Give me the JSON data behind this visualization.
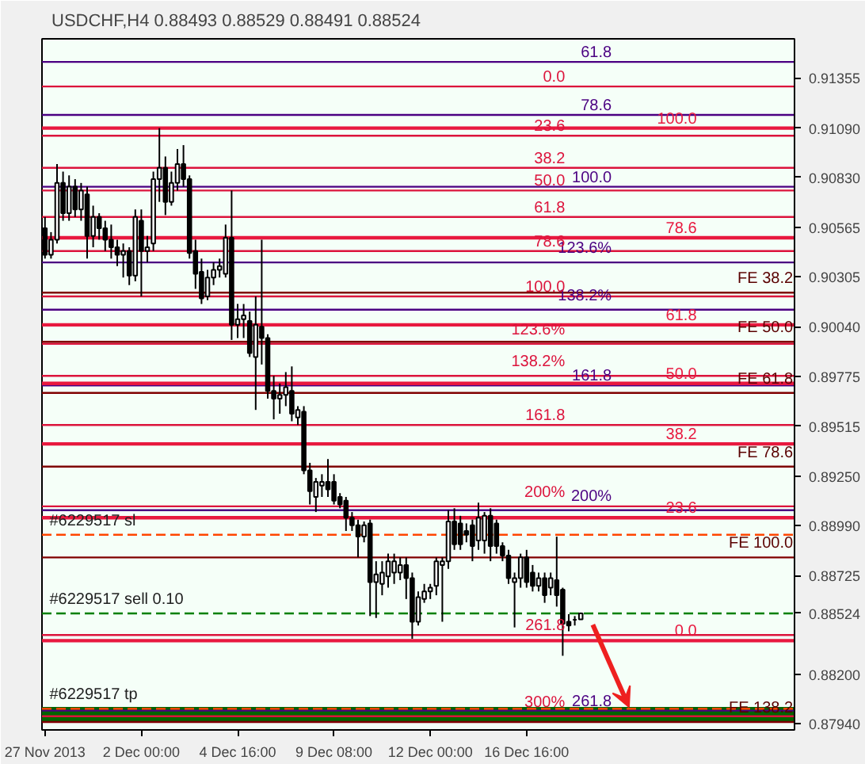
{
  "chart_data": {
    "type": "candlestick",
    "title": "USDCHF,H4  0.88493 0.88529 0.88491 0.88524",
    "categories": [
      "27 Nov 2013",
      null,
      null,
      null,
      null,
      null,
      null,
      null,
      null,
      null,
      null,
      null,
      null,
      null,
      null,
      null,
      "2 Dec 00:00",
      null,
      null,
      null,
      null,
      null,
      null,
      null,
      null,
      null,
      null,
      null,
      null,
      null,
      null,
      null,
      "4 Dec 16:00",
      null,
      null,
      null,
      null,
      null,
      null,
      null,
      null,
      null,
      null,
      null,
      null,
      null,
      null,
      null,
      "9 Dec 08:00",
      null,
      null,
      null,
      null,
      null,
      null,
      null,
      null,
      null,
      null,
      null,
      null,
      null,
      null,
      null,
      "12 Dec 00:00",
      null,
      null,
      null,
      null,
      null,
      null,
      null,
      null,
      null,
      null,
      null,
      null,
      null,
      null,
      null,
      "16 Dec 16:00",
      null,
      null,
      null,
      null,
      null,
      null,
      null,
      null,
      null,
      null,
      null,
      null,
      null,
      null,
      null,
      null,
      null,
      null,
      null,
      null,
      null,
      null,
      null,
      null,
      null,
      null,
      null,
      null,
      null,
      null,
      null,
      null,
      null,
      null,
      null,
      null,
      null,
      null,
      null,
      null,
      null,
      null,
      null,
      null
    ],
    "ohlc": [
      [
        0.9056,
        0.9062,
        0.904,
        0.9042
      ],
      [
        0.9042,
        0.9054,
        0.904,
        0.905
      ],
      [
        0.905,
        0.909,
        0.9048,
        0.908
      ],
      [
        0.908,
        0.9086,
        0.906,
        0.9064
      ],
      [
        0.9064,
        0.9084,
        0.906,
        0.9078
      ],
      [
        0.9078,
        0.9082,
        0.9062,
        0.9066
      ],
      [
        0.9066,
        0.908,
        0.906,
        0.9076
      ],
      [
        0.9074,
        0.9078,
        0.904,
        0.9052
      ],
      [
        0.9052,
        0.9068,
        0.9046,
        0.9062
      ],
      [
        0.9062,
        0.9064,
        0.905,
        0.9056
      ],
      [
        0.9056,
        0.906,
        0.9044,
        0.905
      ],
      [
        0.905,
        0.9058,
        0.904,
        0.9046
      ],
      [
        0.9046,
        0.905,
        0.9036,
        0.9042
      ],
      [
        0.9042,
        0.9048,
        0.903,
        0.9044
      ],
      [
        0.9044,
        0.9046,
        0.9026,
        0.9031
      ],
      [
        0.9031,
        0.9066,
        0.9028,
        0.9062
      ],
      [
        0.906,
        0.9066,
        0.902,
        0.9044
      ],
      [
        0.9044,
        0.9052,
        0.9038,
        0.9046
      ],
      [
        0.9048,
        0.9086,
        0.9044,
        0.9082
      ],
      [
        0.9082,
        0.9109,
        0.907,
        0.9088
      ],
      [
        0.9088,
        0.9094,
        0.9063,
        0.907
      ],
      [
        0.907,
        0.9086,
        0.9068,
        0.908
      ],
      [
        0.908,
        0.9098,
        0.9076,
        0.909
      ],
      [
        0.909,
        0.91,
        0.9078,
        0.9082
      ],
      [
        0.9082,
        0.9084,
        0.904,
        0.9043
      ],
      [
        0.9044,
        0.905,
        0.9024,
        0.9032
      ],
      [
        0.9033,
        0.904,
        0.9016,
        0.9019
      ],
      [
        0.902,
        0.9034,
        0.9018,
        0.903
      ],
      [
        0.903,
        0.9038,
        0.9026,
        0.9034
      ],
      [
        0.9034,
        0.904,
        0.903,
        0.9036
      ],
      [
        0.9032,
        0.9058,
        0.903,
        0.9051
      ],
      [
        0.9051,
        0.9076,
        0.8997,
        0.9005
      ],
      [
        0.9005,
        0.9016,
        0.8998,
        0.9008
      ],
      [
        0.9008,
        0.9016,
        0.8998,
        0.901
      ],
      [
        0.9007,
        0.9012,
        0.8988,
        0.899
      ],
      [
        0.8988,
        0.902,
        0.896,
        0.9005
      ],
      [
        0.9004,
        0.905,
        0.8984,
        0.8998
      ],
      [
        0.8998,
        0.9,
        0.8966,
        0.897
      ],
      [
        0.897,
        0.8978,
        0.8955,
        0.8966
      ],
      [
        0.8966,
        0.8974,
        0.8958,
        0.8968
      ],
      [
        0.8968,
        0.898,
        0.8962,
        0.8972
      ],
      [
        0.897,
        0.8983,
        0.8954,
        0.8958
      ],
      [
        0.8956,
        0.8962,
        0.8952,
        0.896
      ],
      [
        0.8959,
        0.8962,
        0.8926,
        0.8928
      ],
      [
        0.8928,
        0.8932,
        0.891,
        0.8917
      ],
      [
        0.8914,
        0.8924,
        0.8906,
        0.8922
      ],
      [
        0.892,
        0.8926,
        0.8914,
        0.8922
      ],
      [
        0.8922,
        0.8934,
        0.8914,
        0.8918
      ],
      [
        0.8922,
        0.8926,
        0.891,
        0.8912
      ],
      [
        0.8914,
        0.8916,
        0.8908,
        0.891
      ],
      [
        0.8912,
        0.8914,
        0.8896,
        0.8903
      ],
      [
        0.8903,
        0.8906,
        0.8896,
        0.8899
      ],
      [
        0.8899,
        0.8902,
        0.8882,
        0.8893
      ],
      [
        0.8893,
        0.8901,
        0.889,
        0.8899
      ],
      [
        0.89,
        0.8902,
        0.8851,
        0.8869
      ],
      [
        0.8869,
        0.888,
        0.885,
        0.8873
      ],
      [
        0.8868,
        0.888,
        0.8862,
        0.8874
      ],
      [
        0.8872,
        0.8884,
        0.8866,
        0.888
      ],
      [
        0.8874,
        0.8884,
        0.8868,
        0.888
      ],
      [
        0.8874,
        0.8882,
        0.887,
        0.8878
      ],
      [
        0.8878,
        0.8882,
        0.886,
        0.8871
      ],
      [
        0.8871,
        0.8874,
        0.8839,
        0.8848
      ],
      [
        0.8848,
        0.8864,
        0.8846,
        0.8861
      ],
      [
        0.886,
        0.8868,
        0.8858,
        0.8864
      ],
      [
        0.8864,
        0.8868,
        0.886,
        0.8866
      ],
      [
        0.8867,
        0.8882,
        0.8862,
        0.888
      ],
      [
        0.8878,
        0.8882,
        0.8848,
        0.888
      ],
      [
        0.888,
        0.8907,
        0.8876,
        0.8901
      ],
      [
        0.8901,
        0.8908,
        0.8886,
        0.8889
      ],
      [
        0.89,
        0.8904,
        0.8886,
        0.8889
      ],
      [
        0.8896,
        0.89,
        0.889,
        0.8894
      ],
      [
        0.8899,
        0.8902,
        0.888,
        0.8888
      ],
      [
        0.8891,
        0.8911,
        0.8886,
        0.8903
      ],
      [
        0.8891,
        0.8906,
        0.8884,
        0.8904
      ],
      [
        0.8904,
        0.8908,
        0.888,
        0.8888
      ],
      [
        0.89,
        0.8902,
        0.8884,
        0.8888
      ],
      [
        0.8888,
        0.889,
        0.888,
        0.8883
      ],
      [
        0.8883,
        0.8886,
        0.8868,
        0.8871
      ],
      [
        0.8869,
        0.8874,
        0.8845,
        0.8871
      ],
      [
        0.8871,
        0.8884,
        0.8866,
        0.8882
      ],
      [
        0.8882,
        0.8886,
        0.8866,
        0.8869
      ],
      [
        0.8874,
        0.8878,
        0.8864,
        0.8867
      ],
      [
        0.8867,
        0.8874,
        0.8864,
        0.8871
      ],
      [
        0.8871,
        0.8874,
        0.8858,
        0.8862
      ],
      [
        0.8866,
        0.8874,
        0.8862,
        0.8871
      ],
      [
        0.887,
        0.8893,
        0.8856,
        0.8862
      ],
      [
        0.8865,
        0.8866,
        0.883,
        0.8847
      ],
      [
        0.8848,
        0.8852,
        0.8843,
        0.8846
      ],
      [
        0.8849,
        0.8851,
        0.8846,
        0.8849
      ],
      [
        0.88493,
        0.88529,
        0.88491,
        0.88524
      ],
      null,
      null,
      null,
      null,
      null,
      null,
      null,
      null,
      null,
      null,
      null,
      null,
      null,
      null,
      null,
      null,
      null,
      null,
      null,
      null,
      null,
      null,
      null,
      null,
      null,
      null,
      null,
      null,
      null,
      null,
      null,
      null,
      null,
      null,
      null
    ],
    "ylim": [
      0.87908,
      0.91562
    ],
    "yticks": [
      0.91355,
      {
        "value": 0.9109,
        "label": "0.91090"
      },
      {
        "value": 0.9083,
        "label": "0.90830"
      },
      0.90565,
      0.90305,
      {
        "value": 0.9004,
        "label": "0.90040"
      },
      0.89775,
      0.89515,
      {
        "value": 0.8925,
        "label": "0.89250"
      },
      {
        "value": 0.8899,
        "label": "0.88990"
      },
      0.88725,
      0.88524,
      {
        "value": 0.882,
        "label": "0.88200"
      },
      {
        "value": 0.8794,
        "label": "0.87940"
      }
    ],
    "bands": [
      {
        "axis": "y",
        "from": 0.8795,
        "to": 0.8803,
        "color": "#006400"
      }
    ],
    "ref_lines": [
      {
        "axis": "y",
        "value": 0.9144,
        "color": "#4b0082"
      },
      {
        "axis": "y",
        "value": 0.9116,
        "color": "#4b0082"
      },
      {
        "axis": "y",
        "value": 0.9078,
        "color": "#4b0082"
      },
      {
        "axis": "y",
        "value": 0.9038,
        "color": "#4b0082"
      },
      {
        "axis": "y",
        "value": 0.9013,
        "color": "#4b0082"
      },
      {
        "axis": "y",
        "value": 0.8973,
        "color": "#4b0082"
      },
      {
        "axis": "y",
        "value": 0.8907,
        "color": "#4b0082"
      },
      {
        "axis": "y",
        "value": 0.8801,
        "color": "#4b0082"
      },
      {
        "axis": "y",
        "value": 0.9131,
        "color": "#dc143c"
      },
      {
        "axis": "y",
        "value": 0.9105,
        "color": "#dc143c"
      },
      {
        "axis": "y",
        "value": 0.9088,
        "color": "#dc143c"
      },
      {
        "axis": "y",
        "value": 0.9076,
        "color": "#dc143c"
      },
      {
        "axis": "y",
        "value": 0.9062,
        "color": "#dc143c"
      },
      {
        "axis": "y",
        "value": 0.9044,
        "color": "#dc143c"
      },
      {
        "axis": "y",
        "value": 0.902,
        "color": "#dc143c"
      },
      {
        "axis": "y",
        "value": 0.8995,
        "color": "#dc143c"
      },
      {
        "axis": "y",
        "value": 0.8978,
        "color": "#dc143c"
      },
      {
        "axis": "y",
        "value": 0.8952,
        "color": "#dc143c"
      },
      {
        "axis": "y",
        "value": 0.8909,
        "color": "#dc143c"
      },
      {
        "axis": "y",
        "value": 0.8841,
        "color": "#dc143c"
      },
      {
        "axis": "y",
        "value": 0.8798,
        "color": "#dc143c"
      },
      {
        "axis": "y",
        "value": 0.9109,
        "color": "#e8193f"
      },
      {
        "axis": "y",
        "value": 0.9051,
        "color": "#e8193f"
      },
      {
        "axis": "y",
        "value": 0.9005,
        "color": "#e8193f"
      },
      {
        "axis": "y",
        "value": 0.8974,
        "color": "#e8193f"
      },
      {
        "axis": "y",
        "value": 0.8942,
        "color": "#e8193f"
      },
      {
        "axis": "y",
        "value": 0.8903,
        "color": "#e8193f"
      },
      {
        "axis": "y",
        "value": 0.8838,
        "color": "#e8193f"
      },
      {
        "axis": "y",
        "value": 0.9022,
        "color": "#800000",
        "label": "FE 38.2"
      },
      {
        "axis": "y",
        "value": 0.8996,
        "color": "#800000",
        "label": "FE 50.0"
      },
      {
        "axis": "y",
        "value": 0.8969,
        "color": "#800000",
        "label": "FE 61.8"
      },
      {
        "axis": "y",
        "value": 0.893,
        "color": "#800000",
        "label": "FE 78.6"
      },
      {
        "axis": "y",
        "value": 0.8882,
        "color": "#800000",
        "label": "FE 100.0"
      },
      {
        "axis": "y",
        "value": 0.8795,
        "color": "#800000",
        "label": "FE 138.2"
      },
      {
        "axis": "y",
        "value": 0.8894,
        "color": "#ff4500",
        "line_style": "dashed",
        "label": "#6229517 sl"
      },
      {
        "axis": "y",
        "value": 0.88524,
        "color": "#008000",
        "line_style": "dashed",
        "label": "#6229517 sell 0.10"
      },
      {
        "axis": "y",
        "value": 0.8802,
        "color": "#ff4500",
        "line_style": "dashed",
        "label": "#6229517 tp"
      }
    ],
    "annotations": [
      {
        "text": "61.8",
        "y": 0.9144
      },
      {
        "text": "78.6",
        "y": 0.9116
      },
      {
        "text": "100.0",
        "y": 0.9078
      },
      {
        "text": "123.6%",
        "y": 0.9038
      },
      {
        "text": "138.2%",
        "y": 0.9013
      },
      {
        "text": "161.8",
        "y": 0.8973
      },
      {
        "text": "200%",
        "y": 0.8907
      },
      {
        "text": "261.8",
        "y": 0.8801
      },
      {
        "text": "0.0",
        "y": 0.9131
      },
      {
        "text": "23.6",
        "y": 0.9105
      },
      {
        "text": "38.2",
        "y": 0.9088
      },
      {
        "text": "50.0",
        "y": 0.9076
      },
      {
        "text": "61.8",
        "y": 0.9062
      },
      {
        "text": "78.6",
        "y": 0.9044
      },
      {
        "text": "100.0",
        "y": 0.902
      },
      {
        "text": "123.6%",
        "y": 0.8995
      },
      {
        "text": "138.2%",
        "y": 0.8978
      },
      {
        "text": "161.8",
        "y": 0.8952
      },
      {
        "text": "200%",
        "y": 0.8909
      },
      {
        "text": "261.8",
        "y": 0.8841
      },
      {
        "text": "300%",
        "y": 0.8798
      },
      {
        "text": "100.0",
        "y": 0.9109
      },
      {
        "text": "78.6",
        "y": 0.9051
      },
      {
        "text": "61.8",
        "y": 0.9005
      },
      {
        "text": "50.0",
        "y": 0.8974
      },
      {
        "text": "38.2",
        "y": 0.8942
      },
      {
        "text": "23.6",
        "y": 0.8903
      },
      {
        "text": "0.0",
        "y": 0.8838
      }
    ]
  }
}
